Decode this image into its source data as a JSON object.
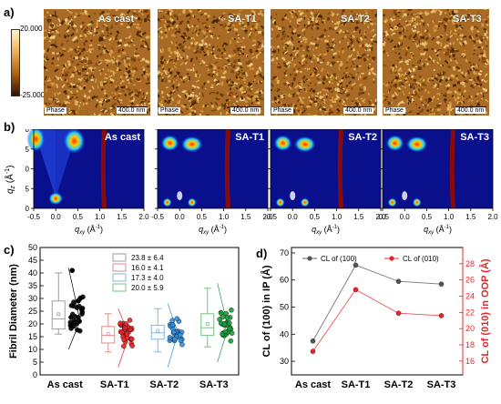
{
  "panel_a": {
    "letter": "a)",
    "colorbar": {
      "max": "20.000",
      "min": "-25.000"
    },
    "images": [
      {
        "label": "As cast",
        "phase": "Phase",
        "scale": "400.0 nm"
      },
      {
        "label": "SA-T1",
        "phase": "Phase",
        "scale": "400.0 nm"
      },
      {
        "label": "SA-T2",
        "phase": "Phase",
        "scale": "400.0 nm"
      },
      {
        "label": "SA-T3",
        "phase": "Phase",
        "scale": "400.0 nm"
      }
    ]
  },
  "panel_b": {
    "letter": "b)",
    "ylabel": "q",
    "ylabel_sub": "z",
    "ylabel_unit": " (Å",
    "ylabel_exp": "-1",
    "ylabel_close": ")",
    "xlabel": "q",
    "xlabel_sub": "xy",
    "xlabel_unit": " (Å",
    "xlabel_exp": "-1",
    "xlabel_close": ")",
    "yticks": [
      "0.0",
      "0.5",
      "1.0",
      "1.5",
      "2.0"
    ],
    "xticks": [
      "-0.5",
      "0.0",
      "0.5",
      "1.0",
      "1.5",
      "2.0"
    ],
    "images": [
      {
        "label": "As cast"
      },
      {
        "label": "SA-T1"
      },
      {
        "label": "SA-T2"
      },
      {
        "label": "SA-T3"
      }
    ]
  },
  "panel_c": {
    "letter": "c)",
    "chart_data": {
      "type": "box",
      "ylabel": "Fibril Diameter (nm)",
      "ylim": [
        0,
        50
      ],
      "yticks": [
        "0",
        "5",
        "10",
        "15",
        "20",
        "25",
        "30",
        "35",
        "40",
        "45",
        "50"
      ],
      "categories": [
        "As cast",
        "SA-T1",
        "SA-T2",
        "SA-T3"
      ],
      "legend": [
        "23.8 ± 6.4",
        "16.0 ± 4.1",
        "17.3 ± 4.0",
        "20.0 ± 5.9"
      ],
      "colors": [
        "#000000",
        "#e8242a",
        "#2f8fe0",
        "#1a9e3a"
      ],
      "box_colors": [
        "#9e9e9e",
        "#e38a8a",
        "#7eb5e6",
        "#77c187"
      ],
      "series": [
        {
          "name": "23.8 ± 6.4",
          "mean": 23.8,
          "q1": 18,
          "median": 22,
          "q3": 29,
          "whisker_low": 16,
          "whisker_high": 40,
          "max_point": 41
        },
        {
          "name": "16.0 ± 4.1",
          "mean": 16.0,
          "q1": 12.5,
          "median": 15.5,
          "q3": 19,
          "whisker_low": 9,
          "whisker_high": 24
        },
        {
          "name": "17.3 ± 4.0",
          "mean": 17.3,
          "q1": 14,
          "median": 16.5,
          "q3": 19.5,
          "whisker_low": 9,
          "whisker_high": 26
        },
        {
          "name": "20.0 ± 5.9",
          "mean": 20.0,
          "q1": 15.5,
          "median": 18.5,
          "q3": 24,
          "whisker_low": 11,
          "whisker_high": 34
        }
      ]
    }
  },
  "panel_d": {
    "letter": "d)",
    "chart_data": {
      "type": "line",
      "categories": [
        "As cast",
        "SA-T1",
        "SA-T2",
        "SA-T3"
      ],
      "ylabel_left": "CL of (100) in IP (Å)",
      "ylabel_right": "CL of (010) in OOP (Å)",
      "ylim_left": [
        25,
        72
      ],
      "yticks_left": [
        "30",
        "40",
        "50",
        "60",
        "70"
      ],
      "ylim_right": [
        14.3,
        30.0
      ],
      "yticks_right": [
        "16",
        "18",
        "20",
        "22",
        "24",
        "26",
        "28"
      ],
      "series": [
        {
          "name": "CL of (100)",
          "axis": "left",
          "color": "#555555",
          "values": [
            37.5,
            65.5,
            59.5,
            58.5
          ]
        },
        {
          "name": "CL of (010)",
          "axis": "right",
          "color": "#e8242a",
          "values": [
            17.2,
            24.8,
            21.9,
            21.6
          ]
        }
      ],
      "right_axis_color": "#e8242a"
    }
  }
}
